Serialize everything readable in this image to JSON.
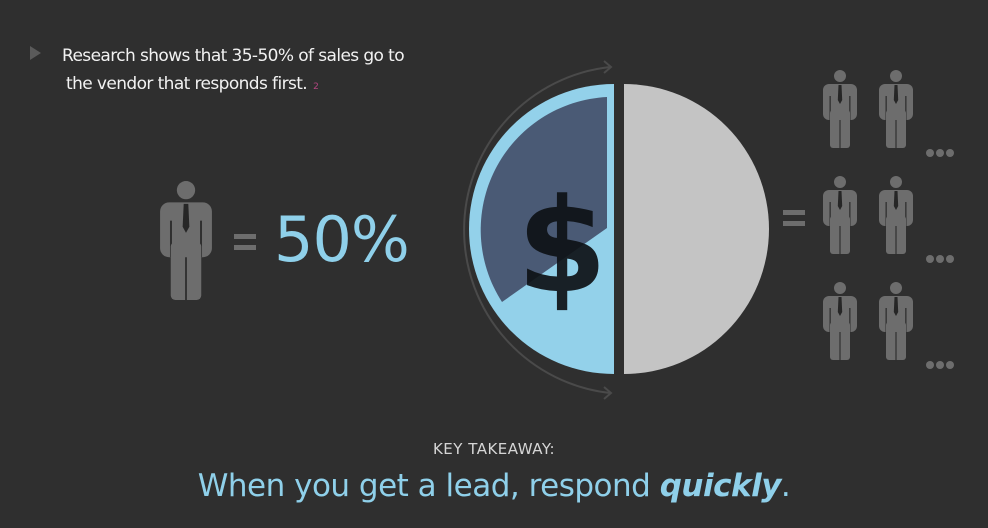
{
  "intro": {
    "line1": "Research shows that 35-50% of sales go to",
    "line2": "the vendor that responds first.",
    "reference": "2"
  },
  "equation": {
    "value": "50%",
    "icon": "person-icon",
    "equals_icon": "equals-icon",
    "more_icon": "ellipsis-icon"
  },
  "pie": {
    "icon": "dollar-icon",
    "left_half": "vendor that responds first",
    "colors": {
      "light_blue": "#93d1ea",
      "dark_blue": "#4a5a75",
      "gray": "#c4c4c4",
      "background": "#2f2f2f"
    }
  },
  "takeaway": {
    "label": "KEY TAKEAWAY:",
    "text_before": "When you get a lead, respond ",
    "emphasis": "quickly",
    "text_after": "."
  }
}
